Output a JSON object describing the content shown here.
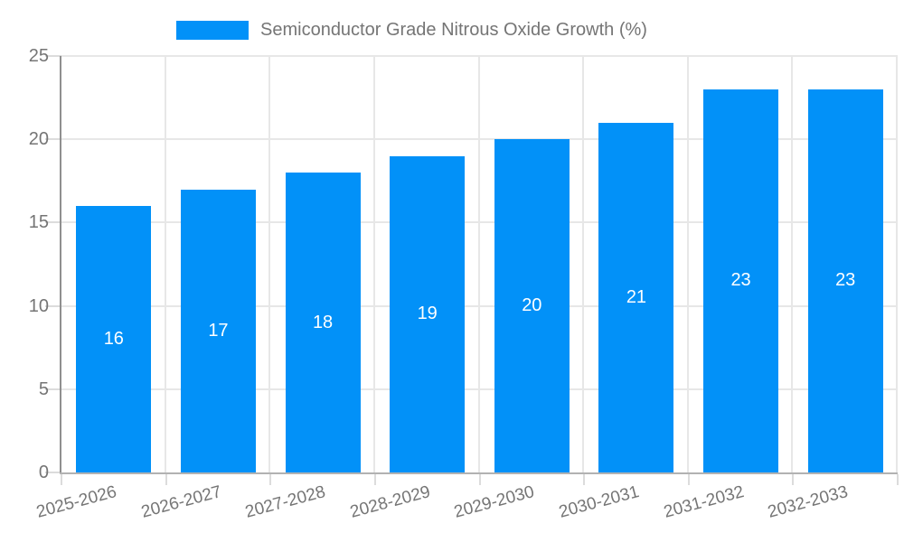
{
  "chart_data": {
    "type": "bar",
    "title": "Semiconductor Grade Nitrous Oxide Growth (%)",
    "categories": [
      "2025-2026",
      "2026-2027",
      "2027-2028",
      "2028-2029",
      "2029-2030",
      "2030-2031",
      "2031-2032",
      "2032-2033"
    ],
    "series": [
      {
        "name": "Semiconductor Grade Nitrous Oxide Growth (%)",
        "values": [
          16,
          17,
          18,
          19,
          20,
          21,
          23,
          23
        ]
      }
    ],
    "xlabel": "",
    "ylabel": "",
    "ylim": [
      0,
      25
    ],
    "yticks": [
      0,
      5,
      10,
      15,
      20,
      25
    ],
    "grid": true,
    "legend_position": "top-center",
    "x_label_rotation_deg": -15,
    "colors": {
      "bar": "#0291f8",
      "value_label": "#ffffff",
      "axis_text": "#757575",
      "gridline": "#e7e7e7",
      "tick": "#dcdcdc",
      "y_axis_line": "#8f8f8f",
      "x_axis_line": "#b2b2b2",
      "background": "#ffffff"
    }
  }
}
